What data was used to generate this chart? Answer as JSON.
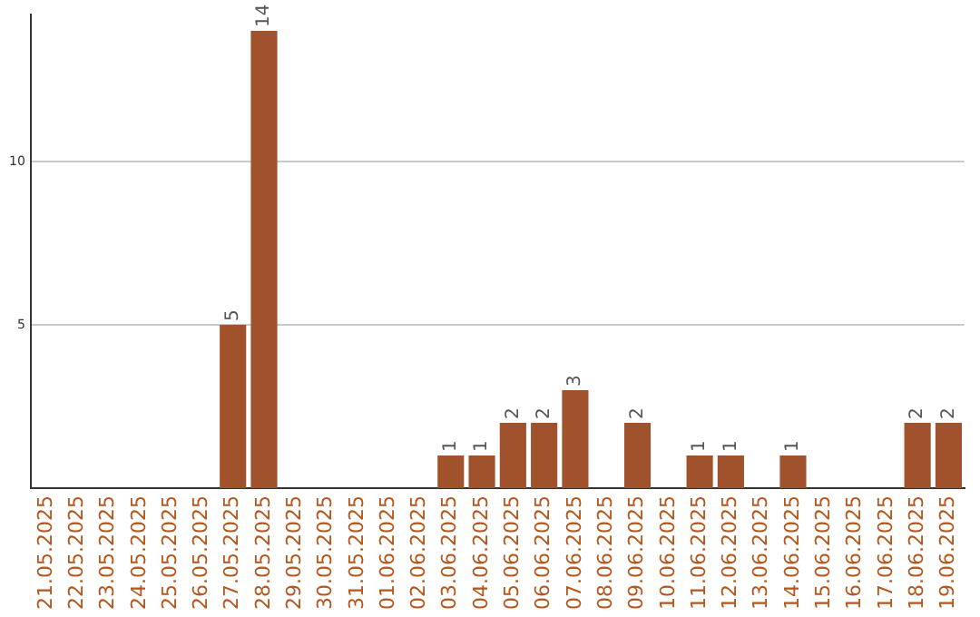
{
  "chart_data": {
    "type": "bar",
    "categories": [
      "21.05.2025",
      "22.05.2025",
      "23.05.2025",
      "24.05.2025",
      "25.05.2025",
      "26.05.2025",
      "27.05.2025",
      "28.05.2025",
      "29.05.2025",
      "30.05.2025",
      "31.05.2025",
      "01.06.2025",
      "02.06.2025",
      "03.06.2025",
      "04.06.2025",
      "05.06.2025",
      "06.06.2025",
      "07.06.2025",
      "08.06.2025",
      "09.06.2025",
      "10.06.2025",
      "11.06.2025",
      "12.06.2025",
      "13.06.2025",
      "14.06.2025",
      "15.06.2025",
      "16.06.2025",
      "17.06.2025",
      "18.06.2025",
      "19.06.2025"
    ],
    "values": [
      0,
      0,
      0,
      0,
      0,
      0,
      5,
      14,
      0,
      0,
      0,
      0,
      0,
      1,
      1,
      2,
      2,
      3,
      0,
      2,
      0,
      1,
      1,
      0,
      1,
      0,
      0,
      0,
      2,
      2
    ],
    "value_labels": [
      null,
      null,
      null,
      null,
      null,
      null,
      "5",
      "14",
      null,
      null,
      null,
      null,
      null,
      "1",
      "1",
      "2",
      "2",
      "3",
      null,
      "2",
      null,
      "1",
      "1",
      null,
      "1",
      null,
      null,
      null,
      "2",
      "2"
    ],
    "color": "#a0522d",
    "ylim": [
      0,
      14.5
    ],
    "yticks": [
      5,
      10
    ],
    "grid": "y",
    "legend": false
  }
}
